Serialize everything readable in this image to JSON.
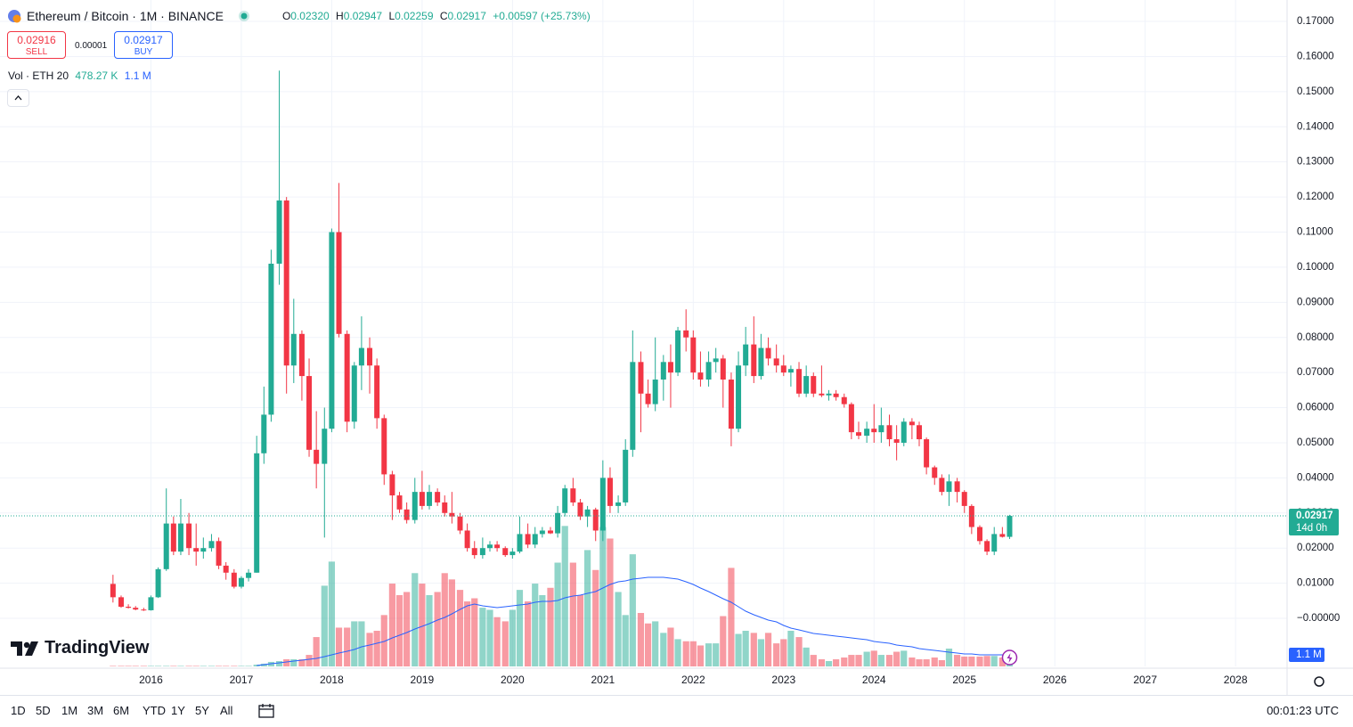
{
  "chart_data": {
    "type": "candlestick",
    "title": "Ethereum / Bitcoin · 1M · BINANCE",
    "up_color": "#22ab94",
    "down_color": "#f23645",
    "grid": true,
    "xlim": [
      2014.33,
      2028.57
    ],
    "xticks": [
      2016,
      2017,
      2018,
      2019,
      2020,
      2021,
      2022,
      2023,
      2024,
      2025,
      2026,
      2027,
      2028
    ],
    "ylim": [
      -0.0137,
      0.1761
    ],
    "yticks": [
      {
        "value": 0.17,
        "label": "0.17000"
      },
      {
        "value": 0.16,
        "label": "0.16000"
      },
      {
        "value": 0.15,
        "label": "0.15000"
      },
      {
        "value": 0.14,
        "label": "0.14000"
      },
      {
        "value": 0.13,
        "label": "0.13000"
      },
      {
        "value": 0.12,
        "label": "0.12000"
      },
      {
        "value": 0.11,
        "label": "0.11000"
      },
      {
        "value": 0.1,
        "label": "0.10000"
      },
      {
        "value": 0.09,
        "label": "0.09000"
      },
      {
        "value": 0.08,
        "label": "0.08000"
      },
      {
        "value": 0.07,
        "label": "0.07000"
      },
      {
        "value": 0.06,
        "label": "0.06000"
      },
      {
        "value": 0.05,
        "label": "0.05000"
      },
      {
        "value": 0.04,
        "label": "0.04000"
      },
      {
        "value": 0.03,
        "label": "0.03000"
      },
      {
        "value": 0.02,
        "label": "0.02000"
      },
      {
        "value": 0.01,
        "label": "0.01000"
      },
      {
        "value": 0,
        "label": "−0.00000"
      }
    ],
    "y2lim": [
      0,
      63580000
    ],
    "x": [
      2015.58,
      2015.67,
      2015.75,
      2015.83,
      2015.92,
      2016,
      2016.08,
      2016.17,
      2016.25,
      2016.33,
      2016.42,
      2016.5,
      2016.58,
      2016.67,
      2016.75,
      2016.83,
      2016.92,
      2017,
      2017.08,
      2017.17,
      2017.25,
      2017.33,
      2017.42,
      2017.5,
      2017.58,
      2017.67,
      2017.75,
      2017.83,
      2017.92,
      2018,
      2018.08,
      2018.17,
      2018.25,
      2018.33,
      2018.42,
      2018.5,
      2018.58,
      2018.67,
      2018.75,
      2018.83,
      2018.92,
      2019,
      2019.08,
      2019.17,
      2019.25,
      2019.33,
      2019.42,
      2019.5,
      2019.58,
      2019.67,
      2019.75,
      2019.83,
      2019.92,
      2020,
      2020.08,
      2020.17,
      2020.25,
      2020.33,
      2020.42,
      2020.5,
      2020.58,
      2020.67,
      2020.75,
      2020.83,
      2020.92,
      2021,
      2021.08,
      2021.17,
      2021.25,
      2021.33,
      2021.42,
      2021.5,
      2021.58,
      2021.67,
      2021.75,
      2021.83,
      2021.92,
      2022,
      2022.08,
      2022.17,
      2022.25,
      2022.33,
      2022.42,
      2022.5,
      2022.58,
      2022.67,
      2022.75,
      2022.83,
      2022.92,
      2023,
      2023.08,
      2023.17,
      2023.25,
      2023.33,
      2023.42,
      2023.5,
      2023.58,
      2023.67,
      2023.75,
      2023.83,
      2023.92,
      2024,
      2024.08,
      2024.17,
      2024.25,
      2024.33,
      2024.42,
      2024.5,
      2024.58,
      2024.67,
      2024.75,
      2024.83,
      2024.92,
      2025,
      2025.08,
      2025.17,
      2025.25,
      2025.33,
      2025.42,
      2025.5
    ],
    "open": [
      0.0098,
      0.006,
      0.0033,
      0.003,
      0.0025,
      0.0023,
      0.006,
      0.014,
      0.027,
      0.019,
      0.027,
      0.02,
      0.019,
      0.02,
      0.022,
      0.015,
      0.013,
      0.009,
      0.0115,
      0.013,
      0.047,
      0.058,
      0.101,
      0.119,
      0.072,
      0.081,
      0.069,
      0.048,
      0.044,
      0.054,
      0.11,
      0.081,
      0.056,
      0.072,
      0.077,
      0.072,
      0.057,
      0.041,
      0.035,
      0.031,
      0.028,
      0.036,
      0.032,
      0.036,
      0.033,
      0.03,
      0.029,
      0.025,
      0.02,
      0.018,
      0.02,
      0.021,
      0.02,
      0.018,
      0.019,
      0.024,
      0.021,
      0.024,
      0.025,
      0.0242,
      0.03,
      0.037,
      0.033,
      0.029,
      0.031,
      0.025,
      0.04,
      0.032,
      0.033,
      0.048,
      0.073,
      0.064,
      0.061,
      0.068,
      0.073,
      0.07,
      0.082,
      0.08,
      0.07,
      0.068,
      0.073,
      0.074,
      0.068,
      0.054,
      0.072,
      0.078,
      0.069,
      0.077,
      0.074,
      0.072,
      0.07,
      0.071,
      0.064,
      0.069,
      0.064,
      0.0635,
      0.064,
      0.063,
      0.061,
      0.053,
      0.052,
      0.054,
      0.053,
      0.055,
      0.051,
      0.05,
      0.056,
      0.055,
      0.051,
      0.043,
      0.04,
      0.036,
      0.039,
      0.036,
      0.032,
      0.026,
      0.022,
      0.019,
      0.024,
      0.0232
    ],
    "high": [
      0.0124,
      0.0065,
      0.004,
      0.0035,
      0.003,
      0.0065,
      0.0145,
      0.037,
      0.029,
      0.034,
      0.03,
      0.027,
      0.023,
      0.024,
      0.023,
      0.016,
      0.014,
      0.012,
      0.014,
      0.052,
      0.066,
      0.105,
      0.156,
      0.12,
      0.091,
      0.082,
      0.074,
      0.059,
      0.06,
      0.111,
      0.124,
      0.082,
      0.073,
      0.086,
      0.08,
      0.074,
      0.058,
      0.042,
      0.036,
      0.033,
      0.04,
      0.042,
      0.038,
      0.037,
      0.035,
      0.036,
      0.03,
      0.027,
      0.022,
      0.023,
      0.022,
      0.022,
      0.0205,
      0.02,
      0.029,
      0.027,
      0.026,
      0.026,
      0.026,
      0.032,
      0.038,
      0.04,
      0.034,
      0.032,
      0.0315,
      0.045,
      0.043,
      0.035,
      0.051,
      0.082,
      0.076,
      0.068,
      0.08,
      0.075,
      0.078,
      0.083,
      0.088,
      0.082,
      0.076,
      0.076,
      0.077,
      0.075,
      0.07,
      0.076,
      0.083,
      0.086,
      0.081,
      0.08,
      0.078,
      0.075,
      0.072,
      0.073,
      0.072,
      0.07,
      0.072,
      0.065,
      0.065,
      0.064,
      0.0615,
      0.056,
      0.056,
      0.061,
      0.06,
      0.058,
      0.055,
      0.057,
      0.057,
      0.056,
      0.0515,
      0.0435,
      0.041,
      0.041,
      0.04,
      0.0365,
      0.0325,
      0.0265,
      0.0225,
      0.026,
      0.026,
      0.02947
    ],
    "low": [
      0.0045,
      0.003,
      0.0028,
      0.0023,
      0.0021,
      0.0022,
      0.0058,
      0.0135,
      0.018,
      0.018,
      0.018,
      0.015,
      0.017,
      0.019,
      0.014,
      0.011,
      0.0085,
      0.0085,
      0.0105,
      0.013,
      0.044,
      0.056,
      0.095,
      0.064,
      0.067,
      0.062,
      0.046,
      0.037,
      0.023,
      0.053,
      0.08,
      0.053,
      0.054,
      0.065,
      0.064,
      0.054,
      0.038,
      0.028,
      0.03,
      0.027,
      0.027,
      0.031,
      0.031,
      0.032,
      0.029,
      0.027,
      0.024,
      0.019,
      0.017,
      0.017,
      0.019,
      0.019,
      0.0175,
      0.017,
      0.0185,
      0.02,
      0.02,
      0.023,
      0.024,
      0.023,
      0.029,
      0.032,
      0.028,
      0.026,
      0.022,
      0.022,
      0.03,
      0.03,
      0.032,
      0.046,
      0.053,
      0.06,
      0.059,
      0.062,
      0.06,
      0.069,
      0.076,
      0.068,
      0.066,
      0.066,
      0.07,
      0.06,
      0.049,
      0.053,
      0.069,
      0.067,
      0.068,
      0.072,
      0.07,
      0.069,
      0.066,
      0.063,
      0.063,
      0.063,
      0.063,
      0.062,
      0.062,
      0.06,
      0.051,
      0.051,
      0.05,
      0.05,
      0.05,
      0.049,
      0.045,
      0.049,
      0.051,
      0.049,
      0.041,
      0.038,
      0.035,
      0.032,
      0.033,
      0.03,
      0.024,
      0.021,
      0.018,
      0.018,
      0.023,
      0.02259
    ],
    "close": [
      0.006,
      0.0033,
      0.003,
      0.0025,
      0.0023,
      0.006,
      0.014,
      0.027,
      0.019,
      0.027,
      0.02,
      0.019,
      0.02,
      0.022,
      0.015,
      0.013,
      0.009,
      0.0115,
      0.013,
      0.047,
      0.058,
      0.101,
      0.119,
      0.072,
      0.081,
      0.069,
      0.048,
      0.044,
      0.054,
      0.11,
      0.081,
      0.056,
      0.072,
      0.077,
      0.072,
      0.057,
      0.041,
      0.035,
      0.031,
      0.028,
      0.036,
      0.032,
      0.036,
      0.033,
      0.03,
      0.029,
      0.025,
      0.02,
      0.018,
      0.02,
      0.021,
      0.02,
      0.018,
      0.019,
      0.024,
      0.021,
      0.024,
      0.025,
      0.0242,
      0.03,
      0.037,
      0.033,
      0.029,
      0.031,
      0.025,
      0.04,
      0.032,
      0.033,
      0.048,
      0.073,
      0.064,
      0.061,
      0.068,
      0.073,
      0.07,
      0.082,
      0.08,
      0.07,
      0.068,
      0.073,
      0.074,
      0.068,
      0.054,
      0.072,
      0.078,
      0.069,
      0.077,
      0.074,
      0.072,
      0.07,
      0.071,
      0.064,
      0.069,
      0.064,
      0.0635,
      0.064,
      0.063,
      0.061,
      0.053,
      0.052,
      0.054,
      0.053,
      0.055,
      0.051,
      0.05,
      0.056,
      0.055,
      0.051,
      0.043,
      0.04,
      0.036,
      0.039,
      0.036,
      0.032,
      0.026,
      0.022,
      0.019,
      0.024,
      0.0232,
      0.02917
    ],
    "volume": {
      "axis": "y2",
      "values": [
        50000,
        50000,
        50000,
        50000,
        50000,
        50000,
        50000,
        50000,
        50000,
        50000,
        50000,
        50000,
        50000,
        50000,
        50000,
        50000,
        50000,
        50000,
        50000,
        170000,
        260000,
        430000,
        510000,
        680000,
        680000,
        680000,
        1100000,
        2800000,
        7700000,
        10000000,
        3700000,
        3700000,
        4300000,
        4300000,
        3200000,
        3400000,
        4900000,
        7900000,
        6800000,
        7100000,
        8900000,
        7900000,
        6800000,
        7100000,
        8900000,
        8300000,
        7300000,
        6200000,
        6500000,
        5600000,
        5400000,
        4700000,
        4300000,
        5400000,
        7300000,
        6200000,
        7900000,
        6800000,
        7500000,
        9900000,
        13400000,
        9900000,
        6800000,
        11100000,
        9200000,
        13300000,
        12200000,
        7100000,
        4900000,
        10700000,
        5100000,
        4100000,
        4300000,
        3200000,
        3700000,
        2600000,
        2400000,
        2400000,
        2000000,
        2200000,
        2200000,
        4800000,
        9400000,
        3100000,
        3400000,
        3200000,
        2600000,
        3200000,
        2200000,
        2600000,
        3400000,
        2800000,
        1800000,
        1100000,
        680000,
        510000,
        680000,
        850000,
        1100000,
        1100000,
        1400000,
        1500000,
        1100000,
        1100000,
        1400000,
        1500000,
        850000,
        680000,
        680000,
        850000,
        600000,
        1700000,
        1100000,
        940000,
        940000,
        940000,
        1000000,
        1000000,
        850000,
        478270
      ]
    },
    "volume_ma": {
      "axis": "y2",
      "color": "#2962ff",
      "values": [
        null,
        null,
        null,
        null,
        null,
        null,
        null,
        null,
        null,
        null,
        null,
        null,
        null,
        null,
        null,
        null,
        null,
        null,
        null,
        85000,
        170000,
        255000,
        340000,
        425000,
        510000,
        595000,
        680000,
        765000,
        935000,
        1105000,
        1275000,
        1445000,
        1615000,
        1870000,
        2040000,
        2210000,
        2380000,
        2720000,
        2975000,
        3230000,
        3570000,
        3825000,
        4080000,
        4420000,
        4675000,
        5015000,
        5440000,
        5780000,
        5950000,
        5780000,
        5695000,
        5610000,
        5695000,
        5780000,
        5865000,
        5950000,
        6120000,
        6205000,
        6205000,
        6290000,
        6545000,
        6715000,
        6800000,
        6970000,
        7140000,
        7480000,
        7820000,
        8075000,
        8160000,
        8330000,
        8415000,
        8500000,
        8500000,
        8500000,
        8415000,
        8330000,
        8075000,
        7820000,
        7480000,
        7140000,
        6800000,
        6460000,
        6120000,
        5695000,
        5270000,
        4930000,
        4675000,
        4420000,
        4250000,
        3910000,
        3655000,
        3485000,
        3315000,
        3145000,
        3060000,
        2975000,
        2890000,
        2805000,
        2720000,
        2635000,
        2550000,
        2380000,
        2295000,
        2210000,
        2040000,
        1955000,
        1870000,
        1700000,
        1615000,
        1530000,
        1445000,
        1360000,
        1275000,
        1190000,
        1190000,
        1105000,
        1105000,
        1105000,
        1105000,
        1100000
      ]
    }
  },
  "ui": {
    "ohlc_legend": [
      {
        "label": "O",
        "value": "0.02320"
      },
      {
        "label": "H",
        "value": "0.02947"
      },
      {
        "label": "L",
        "value": "0.02259"
      },
      {
        "label": "C",
        "value": "0.02917"
      }
    ],
    "change": "+0.00597 (+25.73%)",
    "sell": {
      "price": "0.02916",
      "label": "SELL"
    },
    "spread": "0.00001",
    "buy": {
      "price": "0.02917",
      "label": "BUY"
    },
    "volume_legend": {
      "label": "Vol · ETH 20",
      "value": "478.27 K",
      "ma": "1.1 M"
    },
    "countdown": "14d 0h",
    "volume_ma_axis_label": "1.1 M",
    "logo": "TradingView",
    "timeframes": [
      "1D",
      "5D",
      "1M",
      "3M",
      "6M",
      "YTD",
      "1Y",
      "5Y",
      "All"
    ],
    "clock": "00:01:23 UTC"
  }
}
